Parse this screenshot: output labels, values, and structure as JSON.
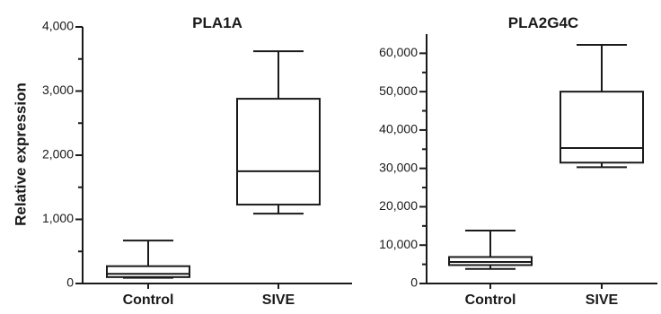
{
  "chart_data": [
    {
      "type": "box",
      "title": "PLA1A",
      "ylabel": "Relative expression",
      "xlabel": "",
      "ylim": [
        0,
        4000
      ],
      "y_ticks": [
        "0",
        "1,000",
        "2,000",
        "3,000",
        "4,000"
      ],
      "y_tick_values": [
        0,
        1000,
        2000,
        3000,
        4000
      ],
      "categories": [
        "Control",
        "SIVE"
      ],
      "boxes": [
        {
          "name": "Control",
          "min": 90,
          "q1": 100,
          "median": 150,
          "q3": 270,
          "max": 670
        },
        {
          "name": "SIVE",
          "min": 1090,
          "q1": 1230,
          "median": 1750,
          "q3": 2880,
          "max": 3620
        }
      ]
    },
    {
      "type": "box",
      "title": "PLA2G4C",
      "ylabel": "",
      "xlabel": "",
      "ylim": [
        0,
        65000
      ],
      "y_ticks": [
        "0",
        "10,000",
        "20,000",
        "30,000",
        "40,000",
        "50,000",
        "60,000"
      ],
      "y_tick_values": [
        0,
        10000,
        20000,
        30000,
        40000,
        50000,
        60000
      ],
      "categories": [
        "Control",
        "SIVE"
      ],
      "boxes": [
        {
          "name": "Control",
          "min": 3800,
          "q1": 4800,
          "median": 5600,
          "q3": 6900,
          "max": 13800
        },
        {
          "name": "SIVE",
          "min": 30300,
          "q1": 31500,
          "median": 35300,
          "q3": 50000,
          "max": 62200
        }
      ]
    }
  ]
}
